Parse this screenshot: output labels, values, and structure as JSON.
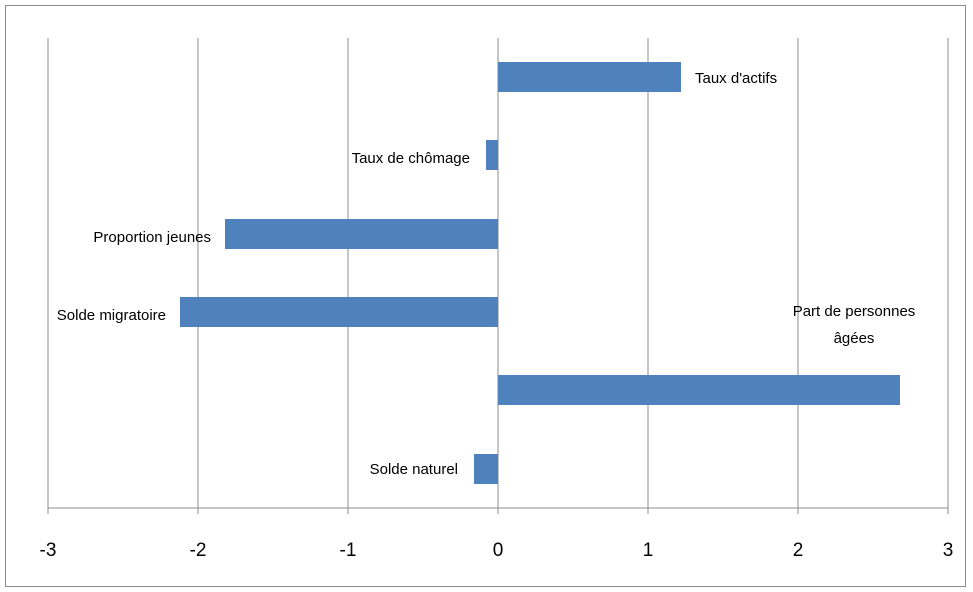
{
  "chart_data": {
    "type": "bar",
    "orientation": "horizontal",
    "title": "",
    "xlabel": "",
    "ylabel": "",
    "xlim": [
      -3,
      3
    ],
    "x_ticks": [
      -3,
      -2,
      -1,
      0,
      1,
      2,
      3
    ],
    "grid": "vertical",
    "legend": "none",
    "bar_color": "#4F81BD",
    "categories": [
      "Taux d'actifs",
      "Taux de chômage",
      "Proportion jeunes",
      "Solde migratoire",
      "Part de personnes âgées",
      "Solde naturel"
    ],
    "values": [
      1.22,
      -0.08,
      -1.82,
      -2.12,
      2.68,
      -0.16
    ]
  }
}
